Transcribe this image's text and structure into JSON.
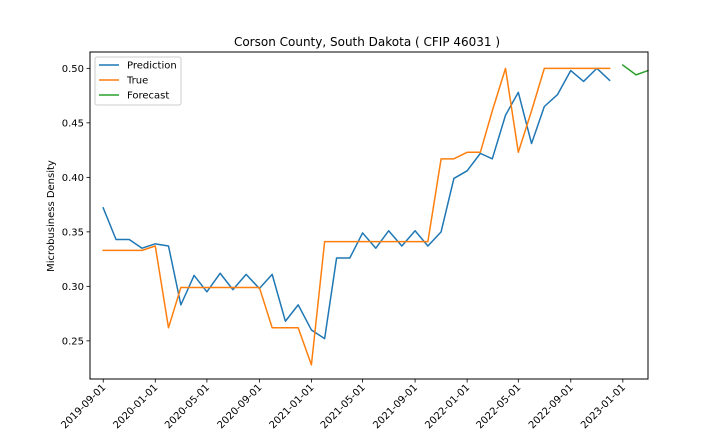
{
  "chart_data": {
    "type": "line",
    "title": "Corson County, South Dakota ( CFIP 46031 )",
    "xlabel": "",
    "ylabel": "Microbusiness Density",
    "ylim": [
      0.215,
      0.515
    ],
    "yticks": [
      0.25,
      0.3,
      0.35,
      0.4,
      0.45,
      0.5
    ],
    "ytick_labels": [
      "0.25",
      "0.30",
      "0.35",
      "0.40",
      "0.45",
      "0.50"
    ],
    "xlim": [
      "2019-08-01",
      "2023-03-01"
    ],
    "xticks": [
      "2019-09-01",
      "2020-01-01",
      "2020-05-01",
      "2020-09-01",
      "2021-01-01",
      "2021-05-01",
      "2021-09-01",
      "2022-01-01",
      "2022-05-01",
      "2022-09-01",
      "2023-01-01"
    ],
    "grid": false,
    "legend_position": "top-left",
    "series": [
      {
        "name": "Prediction",
        "color": "#1f77b4",
        "x": [
          "2019-09-01",
          "2019-10-01",
          "2019-11-01",
          "2019-12-01",
          "2020-01-01",
          "2020-02-01",
          "2020-03-01",
          "2020-04-01",
          "2020-05-01",
          "2020-06-01",
          "2020-07-01",
          "2020-08-01",
          "2020-09-01",
          "2020-10-01",
          "2020-11-01",
          "2020-12-01",
          "2021-01-01",
          "2021-02-01",
          "2021-03-01",
          "2021-04-01",
          "2021-05-01",
          "2021-06-01",
          "2021-07-01",
          "2021-08-01",
          "2021-09-01",
          "2021-10-01",
          "2021-11-01",
          "2021-12-01",
          "2022-01-01",
          "2022-02-01",
          "2022-03-01",
          "2022-04-01",
          "2022-05-01",
          "2022-06-01",
          "2022-07-01",
          "2022-08-01",
          "2022-09-01",
          "2022-10-01",
          "2022-11-01",
          "2022-12-01"
        ],
        "values": [
          0.372,
          0.343,
          0.343,
          0.335,
          0.339,
          0.337,
          0.283,
          0.31,
          0.295,
          0.312,
          0.297,
          0.311,
          0.298,
          0.311,
          0.268,
          0.283,
          0.26,
          0.252,
          0.326,
          0.326,
          0.349,
          0.335,
          0.351,
          0.337,
          0.351,
          0.337,
          0.35,
          0.399,
          0.406,
          0.422,
          0.417,
          0.457,
          0.478,
          0.431,
          0.465,
          0.476,
          0.498,
          0.488,
          0.5,
          0.489
        ]
      },
      {
        "name": "True",
        "color": "#ff7f0e",
        "x": [
          "2019-09-01",
          "2019-10-01",
          "2019-11-01",
          "2019-12-01",
          "2020-01-01",
          "2020-02-01",
          "2020-03-01",
          "2020-04-01",
          "2020-05-01",
          "2020-06-01",
          "2020-07-01",
          "2020-08-01",
          "2020-09-01",
          "2020-10-01",
          "2020-11-01",
          "2020-12-01",
          "2021-01-01",
          "2021-02-01",
          "2021-03-01",
          "2021-04-01",
          "2021-05-01",
          "2021-06-01",
          "2021-07-01",
          "2021-08-01",
          "2021-09-01",
          "2021-10-01",
          "2021-11-01",
          "2021-12-01",
          "2022-01-01",
          "2022-02-01",
          "2022-03-01",
          "2022-04-01",
          "2022-05-01",
          "2022-06-01",
          "2022-07-01",
          "2022-08-01",
          "2022-09-01",
          "2022-10-01",
          "2022-11-01",
          "2022-12-01"
        ],
        "values": [
          0.333,
          0.333,
          0.333,
          0.333,
          0.337,
          0.262,
          0.299,
          0.299,
          0.299,
          0.299,
          0.299,
          0.299,
          0.299,
          0.262,
          0.262,
          0.262,
          0.228,
          0.341,
          0.341,
          0.341,
          0.341,
          0.341,
          0.341,
          0.341,
          0.341,
          0.341,
          0.417,
          0.417,
          0.423,
          0.423,
          0.461,
          0.5,
          0.423,
          0.461,
          0.5,
          0.5,
          0.5,
          0.5,
          0.5,
          0.5
        ]
      },
      {
        "name": "Forecast",
        "color": "#2ca02c",
        "x": [
          "2023-01-01",
          "2023-02-01",
          "2023-03-01"
        ],
        "values": [
          0.503,
          0.494,
          0.498
        ]
      }
    ]
  }
}
